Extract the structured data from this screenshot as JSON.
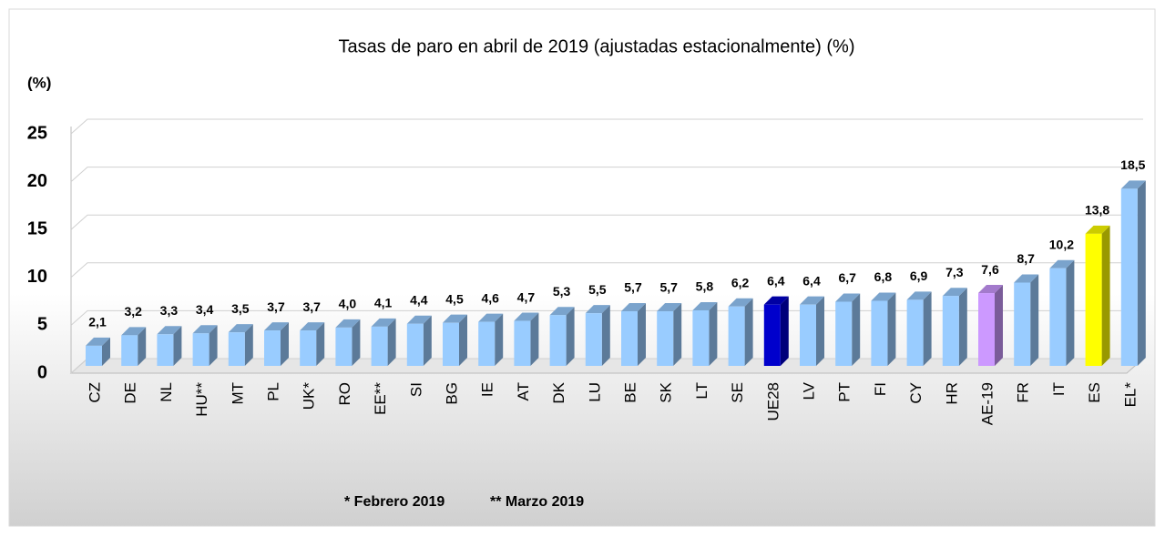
{
  "chart_data": {
    "type": "bar3d",
    "title": "Tasas de paro en abril de 2019  (ajustadas estacionalmente) (%)",
    "y_label": "(%)",
    "categories": [
      "CZ",
      "DE",
      "NL",
      "HU**",
      "MT",
      "PL",
      "UK*",
      "RO",
      "EE**",
      "SI",
      "BG",
      "IE",
      "AT",
      "DK",
      "LU",
      "BE",
      "SK",
      "LT",
      "SE",
      "UE28",
      "LV",
      "PT",
      "FI",
      "CY",
      "HR",
      "AE-19",
      "FR",
      "IT",
      "ES",
      "EL*"
    ],
    "values": [
      2.1,
      3.2,
      3.3,
      3.4,
      3.5,
      3.7,
      3.7,
      4.0,
      4.1,
      4.4,
      4.5,
      4.6,
      4.7,
      5.3,
      5.5,
      5.7,
      5.7,
      5.8,
      6.2,
      6.4,
      6.4,
      6.7,
      6.8,
      6.9,
      7.3,
      7.6,
      8.7,
      10.2,
      13.8,
      18.5
    ],
    "value_labels": [
      "2,1",
      "3,2",
      "3,3",
      "3,4",
      "3,5",
      "3,7",
      "3,7",
      "4,0",
      "4,1",
      "4,4",
      "4,5",
      "4,6",
      "4,7",
      "5,3",
      "5,5",
      "5,7",
      "5,7",
      "5,8",
      "6,2",
      "6,4",
      "6,4",
      "6,7",
      "6,8",
      "6,9",
      "7,3",
      "7,6",
      "8,7",
      "10,2",
      "13,8",
      "18,5"
    ],
    "colors": [
      "#99ccff",
      "#99ccff",
      "#99ccff",
      "#99ccff",
      "#99ccff",
      "#99ccff",
      "#99ccff",
      "#99ccff",
      "#99ccff",
      "#99ccff",
      "#99ccff",
      "#99ccff",
      "#99ccff",
      "#99ccff",
      "#99ccff",
      "#99ccff",
      "#99ccff",
      "#99ccff",
      "#99ccff",
      "#0000cc",
      "#99ccff",
      "#99ccff",
      "#99ccff",
      "#99ccff",
      "#99ccff",
      "#cc99ff",
      "#99ccff",
      "#99ccff",
      "#ffff00",
      "#99ccff"
    ],
    "ylim": [
      0,
      25
    ],
    "yticks": [
      0,
      5,
      10,
      15,
      20,
      25
    ],
    "grid": true,
    "notes": [
      "* Febrero 2019",
      "** Marzo 2019"
    ]
  }
}
